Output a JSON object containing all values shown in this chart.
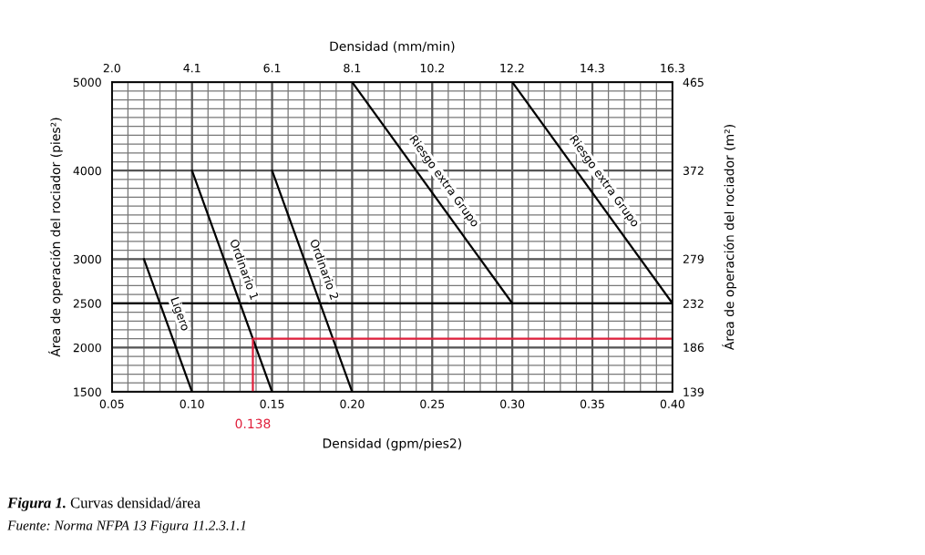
{
  "chart_data": {
    "type": "line",
    "xlabel": "Densidad (gpm/pies2)",
    "x2label": "Densidad (mm/min)",
    "ylabel": "Área de operación del rociador (pies²)",
    "y2label": "Área de operación del rociador (m²)",
    "xlim": [
      0.05,
      0.4
    ],
    "xticks": [
      {
        "value": 0.05,
        "label": "0.05"
      },
      {
        "value": 0.1,
        "label": "0.10"
      },
      {
        "value": 0.15,
        "label": "0.15"
      },
      {
        "value": 0.2,
        "label": "0.20"
      },
      {
        "value": 0.25,
        "label": "0.25"
      },
      {
        "value": 0.3,
        "label": "0.30"
      },
      {
        "value": 0.35,
        "label": "0.35"
      },
      {
        "value": 0.4,
        "label": "0.40"
      }
    ],
    "x2lim": [
      2.037,
      16.3
    ],
    "x2ticks": [
      {
        "value": 2.037,
        "label": "2.0"
      },
      {
        "value": 4.075,
        "label": "4.1"
      },
      {
        "value": 6.112,
        "label": "6.1"
      },
      {
        "value": 8.149,
        "label": "8.1"
      },
      {
        "value": 10.19,
        "label": "10.2"
      },
      {
        "value": 12.22,
        "label": "12.2"
      },
      {
        "value": 14.26,
        "label": "14.3"
      },
      {
        "value": 16.3,
        "label": "16.3"
      }
    ],
    "ylim": [
      1500,
      5000
    ],
    "yticks": [
      1500,
      2000,
      2500,
      3000,
      4000,
      5000
    ],
    "y2lim": [
      139,
      465
    ],
    "y2ticks": [
      139,
      186,
      232,
      279,
      372,
      465
    ],
    "grid": true,
    "marker": "none",
    "line_style": "solid",
    "series": [
      {
        "name": "Ligero",
        "color": "#000000",
        "x": [
          0.07,
          0.1
        ],
        "values": [
          3000,
          1500
        ]
      },
      {
        "name": "Ordinario 1",
        "color": "#000000",
        "x": [
          0.1,
          0.15
        ],
        "values": [
          4000,
          1500
        ]
      },
      {
        "name": "Ordinario 2",
        "color": "#000000",
        "x": [
          0.15,
          0.2
        ],
        "values": [
          4000,
          1500
        ]
      },
      {
        "name": "Riesgo extra Grupo",
        "color": "#000000",
        "x": [
          0.2,
          0.3
        ],
        "values": [
          5000,
          2500
        ]
      },
      {
        "name": "Riesgo extra Grupo",
        "color": "#000000",
        "x": [
          0.3,
          0.4
        ],
        "values": [
          5000,
          2500
        ]
      },
      {
        "color": "#e0203c",
        "x": [
          0.138,
          0.138,
          0.4
        ],
        "values": [
          1500,
          2100,
          2100
        ]
      }
    ],
    "ref_lines": [
      {
        "axis": "y",
        "value": 2500,
        "color": "#000000"
      }
    ],
    "annotations": [
      "Figura 1. Curvas densidad/área",
      "Fuente: Norma NFPA 13 Figura 11.2.3.1.1",
      {
        "text": "0.138",
        "x": 0.138,
        "y": 1500
      }
    ]
  }
}
